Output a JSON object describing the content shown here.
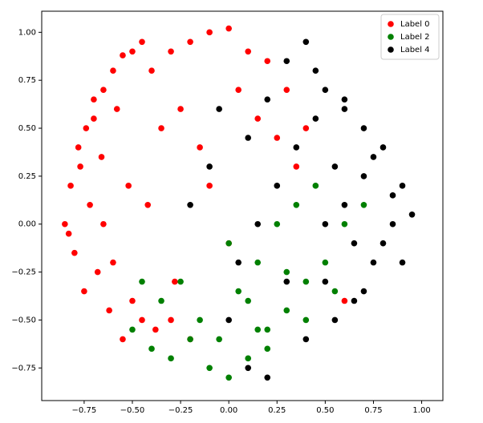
{
  "chart_data": {
    "type": "scatter",
    "xlim": [
      -0.97,
      1.11
    ],
    "ylim": [
      -0.92,
      1.11
    ],
    "xticks": [
      {
        "value": -0.75,
        "label": "−0.75"
      },
      {
        "value": -0.5,
        "label": "−0.50"
      },
      {
        "value": -0.25,
        "label": "−0.25"
      },
      {
        "value": 0,
        "label": "0.00"
      },
      {
        "value": 0.25,
        "label": "0.25"
      },
      {
        "value": 0.5,
        "label": "0.50"
      },
      {
        "value": 0.75,
        "label": "0.75"
      },
      {
        "value": 1,
        "label": "1.00"
      }
    ],
    "yticks": [
      {
        "value": -0.75,
        "label": "−0.75"
      },
      {
        "value": -0.5,
        "label": "−0.50"
      },
      {
        "value": -0.25,
        "label": "−0.25"
      },
      {
        "value": 0,
        "label": "0.00"
      },
      {
        "value": 0.25,
        "label": "0.25"
      },
      {
        "value": 0.5,
        "label": "0.50"
      },
      {
        "value": 0.75,
        "label": "0.75"
      },
      {
        "value": 1,
        "label": "1.00"
      }
    ],
    "grid": false,
    "legend": "upper right",
    "series": [
      {
        "name": "Label 0",
        "color": "#ff0000",
        "x": [
          -0.85,
          -0.82,
          -0.78,
          -0.8,
          -0.75,
          -0.7,
          -0.72,
          -0.65,
          -0.6,
          -0.55,
          -0.5,
          -0.45,
          -0.62,
          -0.68,
          -0.77,
          -0.83,
          -0.74,
          -0.66,
          -0.58,
          -0.52,
          -0.4,
          -0.3,
          -0.2,
          -0.1,
          0.0,
          0.1,
          0.2,
          -0.35,
          -0.25,
          -0.15,
          0.05,
          0.15,
          0.25,
          -0.45,
          -0.55,
          -0.6,
          -0.5,
          -0.42,
          -0.3,
          -0.2,
          0.3,
          0.35,
          0.4,
          0.6,
          -0.1,
          0.0,
          -0.65,
          -0.7,
          -0.38,
          -0.28
        ],
        "y": [
          0.0,
          0.2,
          0.4,
          -0.15,
          -0.35,
          0.55,
          0.1,
          0.7,
          0.8,
          0.88,
          0.9,
          0.95,
          -0.45,
          -0.25,
          0.3,
          -0.05,
          0.5,
          0.35,
          0.6,
          0.2,
          0.8,
          0.9,
          0.95,
          1.0,
          1.02,
          0.9,
          0.85,
          0.5,
          0.6,
          0.4,
          0.7,
          0.55,
          0.45,
          -0.5,
          -0.6,
          -0.2,
          -0.4,
          0.1,
          -0.5,
          -0.6,
          0.7,
          0.3,
          0.5,
          -0.4,
          0.2,
          -0.1,
          0.0,
          0.65,
          -0.55,
          -0.3
        ]
      },
      {
        "name": "Label 2",
        "color": "#008000",
        "x": [
          -0.5,
          -0.4,
          -0.3,
          -0.2,
          -0.1,
          0.0,
          0.1,
          0.2,
          0.3,
          0.4,
          0.5,
          0.6,
          -0.35,
          -0.25,
          -0.15,
          0.05,
          0.15,
          0.25,
          0.35,
          0.45,
          -0.05,
          0.0,
          0.1,
          0.2,
          0.3,
          0.55,
          0.7,
          -0.45,
          0.15,
          0.4
        ],
        "y": [
          -0.55,
          -0.65,
          -0.7,
          -0.6,
          -0.75,
          -0.8,
          -0.7,
          -0.55,
          -0.45,
          -0.3,
          -0.2,
          0.0,
          -0.4,
          -0.3,
          -0.5,
          -0.35,
          -0.2,
          0.0,
          0.1,
          0.2,
          -0.6,
          -0.1,
          -0.4,
          -0.65,
          -0.25,
          -0.35,
          0.1,
          -0.3,
          -0.55,
          -0.5
        ]
      },
      {
        "name": "Label 4",
        "color": "#000000",
        "x": [
          0.5,
          0.6,
          0.7,
          0.8,
          0.9,
          0.85,
          0.75,
          0.65,
          0.55,
          0.45,
          0.4,
          0.3,
          0.2,
          0.1,
          0.0,
          -0.1,
          -0.2,
          0.7,
          0.8,
          0.9,
          0.6,
          0.5,
          0.4,
          0.35,
          0.25,
          0.15,
          0.75,
          0.85,
          0.65,
          0.55,
          0.45,
          0.05,
          -0.05,
          0.3,
          0.2,
          0.1,
          0.95,
          0.7,
          0.6,
          0.5
        ],
        "y": [
          0.7,
          0.6,
          0.5,
          0.4,
          0.2,
          0.0,
          -0.2,
          -0.4,
          -0.5,
          0.8,
          0.95,
          0.85,
          -0.8,
          -0.75,
          -0.5,
          0.3,
          0.1,
          0.25,
          -0.1,
          -0.2,
          0.1,
          -0.3,
          -0.6,
          0.4,
          0.2,
          0.0,
          0.35,
          0.15,
          -0.1,
          0.3,
          0.55,
          -0.2,
          0.6,
          -0.3,
          0.65,
          0.45,
          0.05,
          -0.35,
          0.65,
          0.0
        ]
      }
    ]
  }
}
